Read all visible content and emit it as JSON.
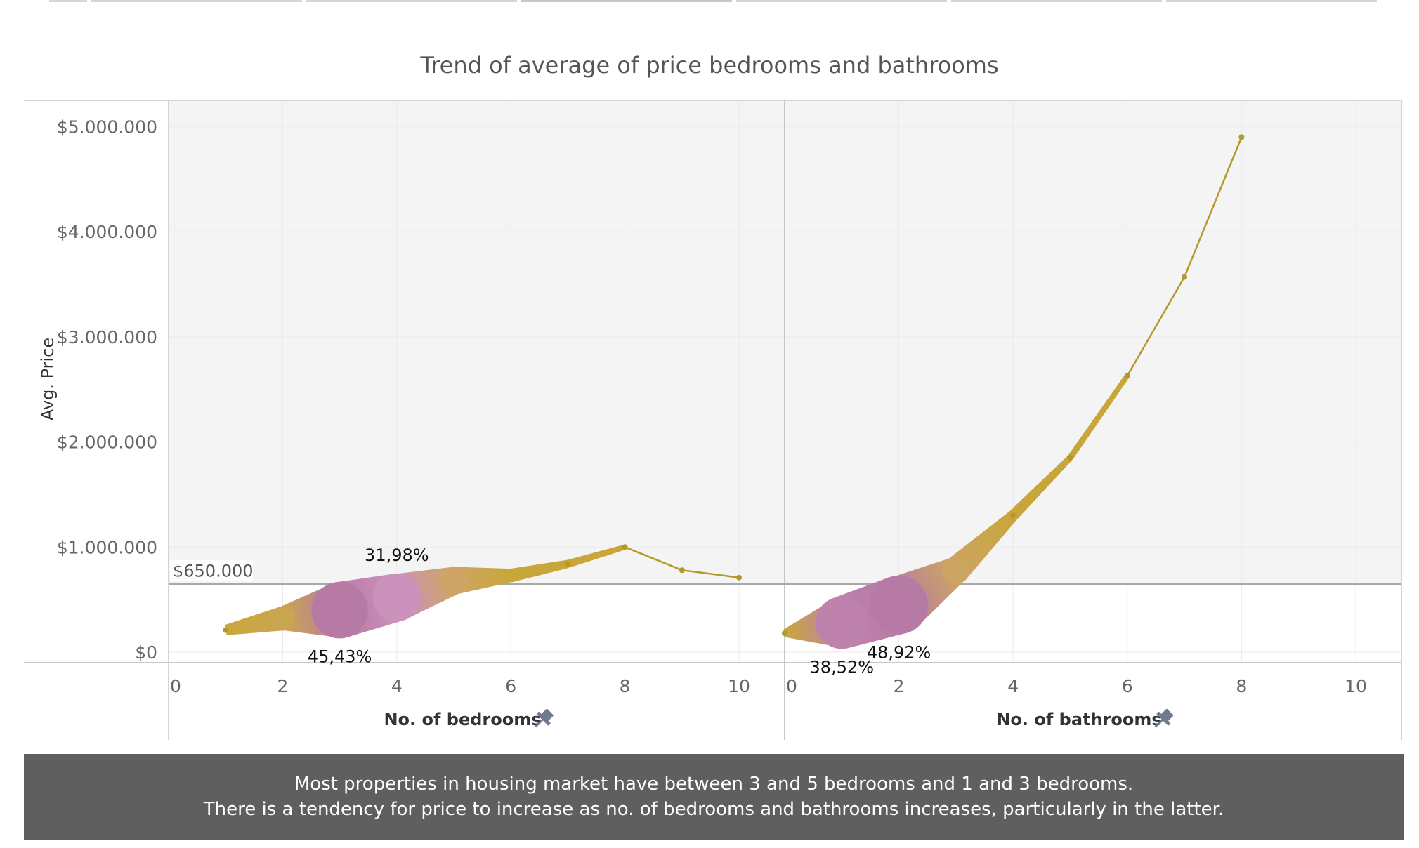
{
  "title": "Trend of average of price bedrooms and bathrooms",
  "caption": {
    "line1": "Most properties in housing market have between 3 and 5 bedrooms and 1 and 3 bedrooms.",
    "line2": "There is a tendency for price to increase as no. of bedrooms and bathrooms increases, particularly in the latter."
  },
  "colors": {
    "line": "#b5982a",
    "band_gold": "#c9a63a",
    "band_pink": "#d9a3cc",
    "band_mauve": "#b77aa5",
    "panel_bg": "#f4f4f4",
    "reference_line": "#a9a9a9",
    "caption_bg": "#5f5f5f",
    "pin_icon": "#6f7b8c"
  },
  "chart_data": [
    {
      "type": "line",
      "panel": "bedrooms",
      "xlabel": "No. of bedrooms",
      "ylabel": "Avg. Price",
      "xlim": [
        0,
        10.8
      ],
      "ylim": [
        -100000,
        5250000
      ],
      "x_ticks": [
        "0",
        "2",
        "4",
        "6",
        "8",
        "10"
      ],
      "y_ticks": [
        "$0",
        "$1.000.000",
        "$2.000.000",
        "$3.000.000",
        "$4.000.000",
        "$5.000.000"
      ],
      "x": [
        1,
        2,
        3,
        4,
        5,
        6,
        7,
        8,
        9,
        10
      ],
      "y": [
        210000,
        320000,
        400000,
        520000,
        680000,
        730000,
        840000,
        1000000,
        780000,
        710000
      ],
      "band_share_pct": [
        1.0,
        8.0,
        45.43,
        31.98,
        11.0,
        2.0,
        0.5,
        0.1,
        0.05,
        0.05
      ],
      "labels": [
        {
          "x": 3,
          "text": "45,43%",
          "position": "below"
        },
        {
          "x": 4,
          "text": "31,98%",
          "position": "above"
        }
      ],
      "reference_line": {
        "value": 650000,
        "label": "$650.000"
      },
      "pin_icon": "pin-icon"
    },
    {
      "type": "line",
      "panel": "bathrooms",
      "xlabel": "No. of bathrooms",
      "ylabel": "Avg. Price",
      "xlim": [
        0,
        10.8
      ],
      "ylim": [
        -100000,
        5250000
      ],
      "x_ticks": [
        "0",
        "2",
        "4",
        "6",
        "8",
        "10"
      ],
      "x": [
        0,
        1,
        2,
        3,
        4,
        5,
        6,
        7,
        8
      ],
      "y": [
        180000,
        280000,
        450000,
        780000,
        1300000,
        1850000,
        2630000,
        3570000,
        4900000
      ],
      "band_share_pct": [
        0.5,
        38.52,
        48.92,
        10.5,
        1.2,
        0.2,
        0.1,
        0.05,
        0.03
      ],
      "labels": [
        {
          "x": 1,
          "text": "38,52%",
          "position": "below"
        },
        {
          "x": 2,
          "text": "48,92%",
          "position": "below"
        }
      ],
      "reference_line": {
        "value": 650000
      },
      "pin_icon": "pin-icon"
    }
  ]
}
